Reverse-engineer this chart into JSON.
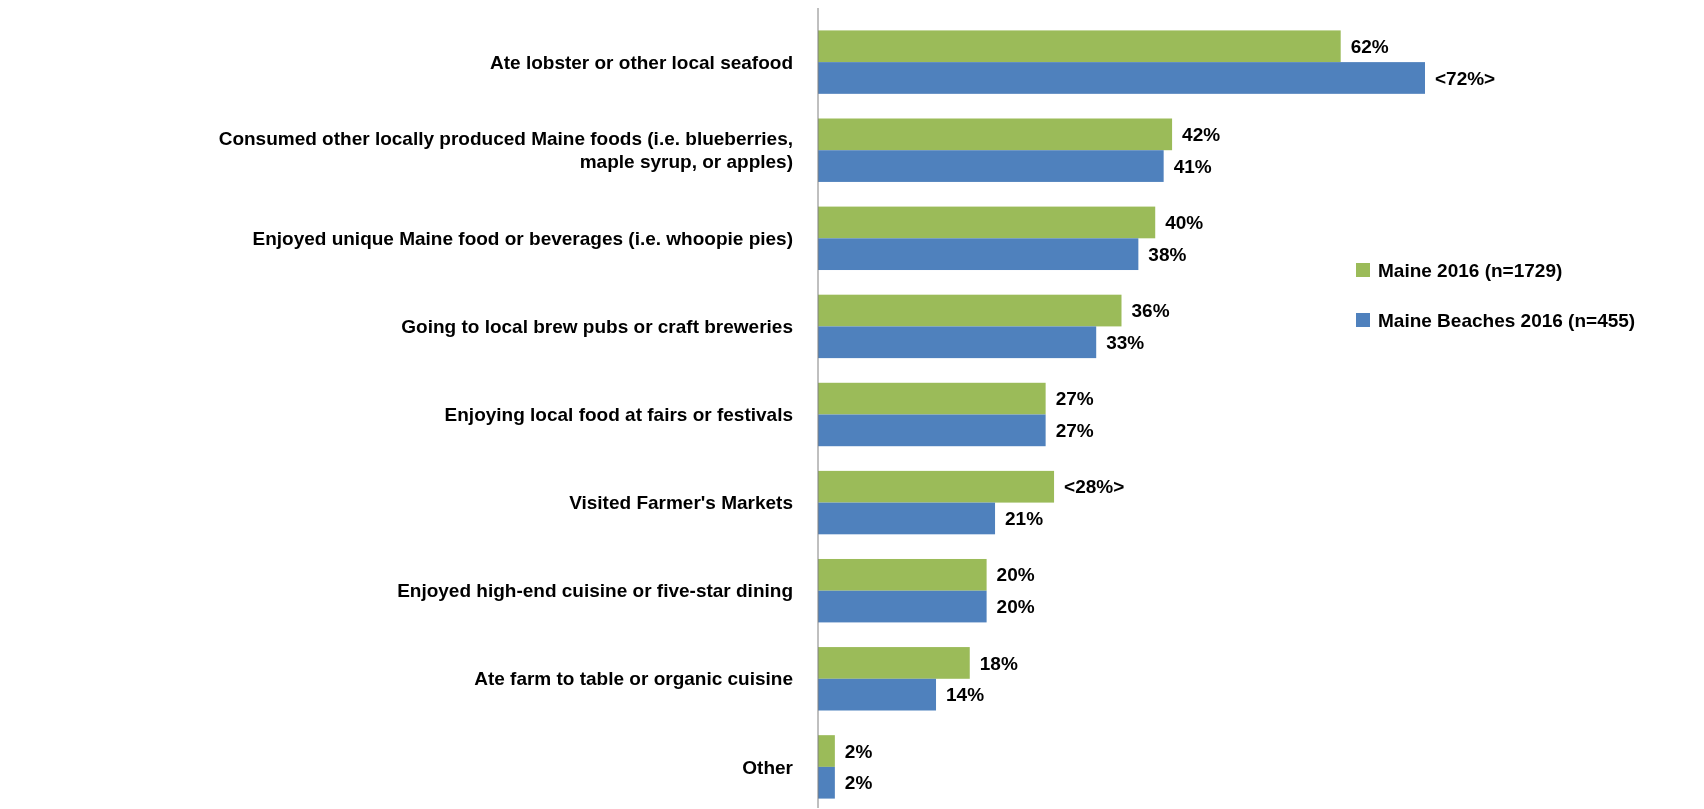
{
  "chart_data": {
    "type": "bar",
    "orientation": "horizontal",
    "legend": "right",
    "categories": [
      "Ate lobster or other local seafood",
      "Consumed other locally produced Maine foods (i.e. blueberries, maple syrup, or apples)",
      "Enjoyed unique Maine food or beverages (i.e. whoopie pies)",
      "Going to local brew pubs or craft breweries",
      "Enjoying local food at fairs or festivals",
      "Visited Farmer's Markets",
      "Enjoyed high-end cuisine or five-star dining",
      "Ate farm to table or organic cuisine",
      "Other"
    ],
    "series": [
      {
        "name": "Maine 2016 (n=1729)",
        "color": "#9bbb59",
        "values": [
          62,
          42,
          40,
          36,
          27,
          28,
          20,
          18,
          2
        ],
        "value_labels": [
          "62%",
          "42%",
          "40%",
          "36%",
          "27%",
          "<28%>",
          "20%",
          "18%",
          "2%"
        ]
      },
      {
        "name": "Maine Beaches 2016 (n=455)",
        "color": "#4f81bd",
        "values": [
          72,
          41,
          38,
          33,
          27,
          21,
          20,
          14,
          2
        ],
        "value_labels": [
          "<72%>",
          "41%",
          "38%",
          "33%",
          "27%",
          "21%",
          "20%",
          "14%",
          "2%"
        ]
      }
    ]
  }
}
